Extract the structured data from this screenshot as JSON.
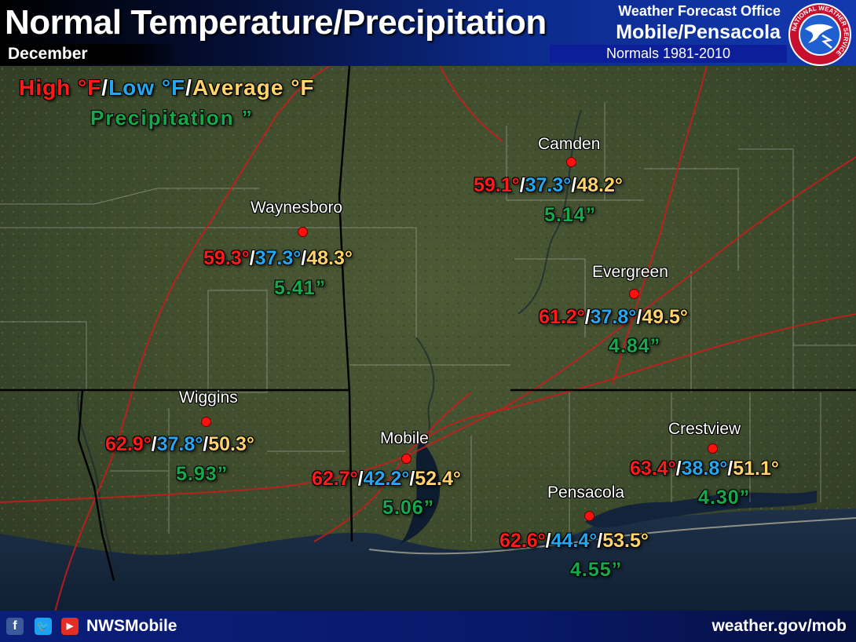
{
  "header": {
    "title": "Normal Temperature/Precipitation",
    "month": "December",
    "office_line1": "Weather Forecast Office",
    "office_line2": "Mobile/Pensacola",
    "normals": "Normals 1981-2010",
    "logo_text": "NATIONAL WEATHER SERVICE"
  },
  "legend": {
    "high": "High °F",
    "low": "Low °F",
    "average": "Average °F",
    "slash": "/",
    "precipitation": "Precipitation ”"
  },
  "stations": [
    {
      "name": "Camden",
      "high": "59.1°",
      "low": "37.3°",
      "avg": "48.2°",
      "precip": "5.14”"
    },
    {
      "name": "Waynesboro",
      "high": "59.3°",
      "low": "37.3°",
      "avg": "48.3°",
      "precip": "5.41”"
    },
    {
      "name": "Evergreen",
      "high": "61.2°",
      "low": "37.8°",
      "avg": "49.5°",
      "precip": "4.84”"
    },
    {
      "name": "Wiggins",
      "high": "62.9°",
      "low": "37.8°",
      "avg": "50.3°",
      "precip": "5.93”"
    },
    {
      "name": "Mobile",
      "high": "62.7°",
      "low": "42.2°",
      "avg": "52.4°",
      "precip": "5.06”"
    },
    {
      "name": "Crestview",
      "high": "63.4°",
      "low": "38.8°",
      "avg": "51.1°",
      "precip": "4.30”"
    },
    {
      "name": "Pensacola",
      "high": "62.6°",
      "low": "44.4°",
      "avg": "53.5°",
      "precip": "4.55”"
    }
  ],
  "footer": {
    "handle": "NWSMobile",
    "site": "weather.gov/mob",
    "icons": [
      "facebook-icon",
      "twitter-icon",
      "youtube-icon"
    ]
  },
  "colors": {
    "high": "#ff1a1a",
    "low": "#27a6f0",
    "average": "#ffd36b",
    "precip": "#16a84a"
  }
}
